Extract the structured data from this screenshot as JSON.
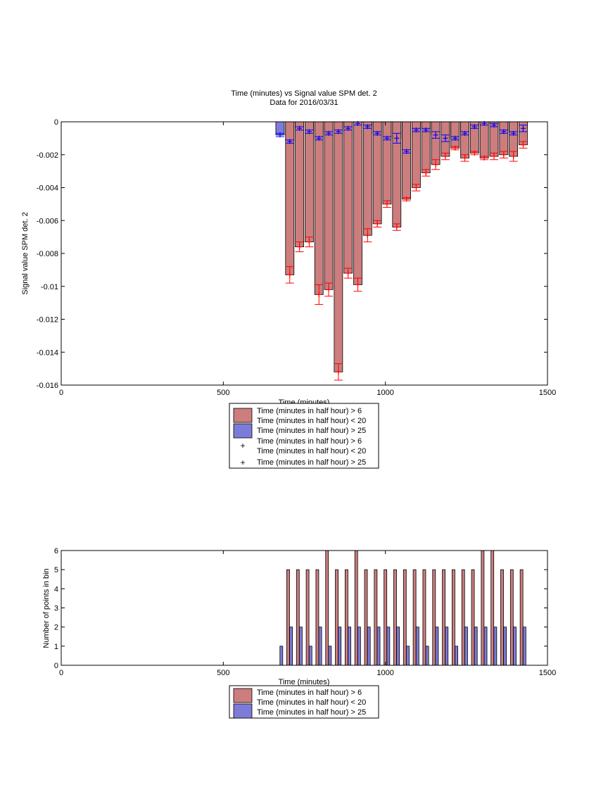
{
  "colors": {
    "bar_mid": "#cc7d7d",
    "bar_late": "#7c7cd8",
    "marker_mid": "#ff0000",
    "marker_late": "#0000ff"
  },
  "chart_data": [
    {
      "type": "bar",
      "title": "Time (minutes) vs Signal value SPM det. 2",
      "subtitle": "Data for 2016/03/31",
      "xlabel": "Time (minutes)",
      "ylabel": "Signal value SPM det. 2",
      "xlim": [
        0,
        1500
      ],
      "ylim": [
        -0.016,
        0
      ],
      "xticks": [
        0,
        500,
        1000,
        1500
      ],
      "xtick_labels": [
        "0",
        "500",
        "1000",
        "1500"
      ],
      "yticks": [
        0,
        -0.002,
        -0.004,
        -0.006,
        -0.008,
        -0.01,
        -0.012,
        -0.014,
        -0.016
      ],
      "ytick_labels": [
        "0",
        "-0.002",
        "-0.004",
        "-0.006",
        "-0.008",
        "-0.01",
        "-0.012",
        "-0.014",
        "-0.016"
      ],
      "legend_position": "below",
      "legend": [
        {
          "kind": "bar",
          "series": 0,
          "lines": [
            "Time (minutes in half hour) > 6",
            "Time (minutes in half hour) < 20"
          ]
        },
        {
          "kind": "bar",
          "series": 1,
          "lines": [
            "Time (minutes in half hour) > 25"
          ]
        },
        {
          "kind": "marker",
          "series": 0,
          "lines": [
            "Time (minutes in half hour) > 6",
            "Time (minutes in half hour) < 20"
          ]
        },
        {
          "kind": "marker",
          "series": 1,
          "lines": [
            "Time (minutes in half hour) > 25"
          ]
        }
      ],
      "series": [
        {
          "x": [
            705,
            735,
            765,
            795,
            825,
            855,
            885,
            915,
            945,
            975,
            1005,
            1035,
            1065,
            1095,
            1125,
            1155,
            1185,
            1215,
            1245,
            1275,
            1305,
            1335,
            1365,
            1395,
            1425
          ],
          "values": [
            -0.0093,
            -0.0076,
            -0.0073,
            -0.0105,
            -0.0102,
            -0.0152,
            -0.0092,
            -0.0099,
            -0.0069,
            -0.0062,
            -0.005,
            -0.0064,
            -0.0047,
            -0.004,
            -0.0031,
            -0.0026,
            -0.0021,
            -0.0016,
            -0.0022,
            -0.0019,
            -0.0022,
            -0.0021,
            -0.002,
            -0.0021,
            -0.0014
          ],
          "errors": [
            0.0005,
            0.0003,
            0.0003,
            0.0006,
            0.0004,
            0.0005,
            0.0003,
            0.0004,
            0.0004,
            0.0002,
            0.0002,
            0.0002,
            0.0001,
            0.0002,
            0.0002,
            0.0003,
            0.0002,
            0.0001,
            0.0002,
            0.0001,
            0.0001,
            0.0002,
            0.0002,
            0.0003,
            0.0002
          ]
        },
        {
          "x": [
            675,
            705,
            735,
            765,
            795,
            825,
            855,
            885,
            915,
            945,
            975,
            1005,
            1035,
            1065,
            1095,
            1125,
            1155,
            1185,
            1215,
            1245,
            1275,
            1305,
            1335,
            1365,
            1395,
            1425
          ],
          "values": [
            -0.0008,
            -0.0012,
            -0.0004,
            -0.0006,
            -0.001,
            -0.0007,
            -0.0006,
            -0.0004,
            -0.0001,
            -0.0003,
            -0.0007,
            -0.001,
            -0.001,
            -0.0018,
            -0.0005,
            -0.0005,
            -0.0008,
            -0.001,
            -0.001,
            -0.0007,
            -0.0003,
            -0.0001,
            -0.0002,
            -0.0006,
            -0.0007,
            -0.0004
          ],
          "errors": [
            0.0001,
            0.0001,
            0.0001,
            0.0001,
            0.0001,
            0.0001,
            0.0001,
            0.0001,
            0.0001,
            0.0001,
            0.0001,
            0.0001,
            0.0003,
            0.0001,
            0.0001,
            0.0001,
            0.0002,
            0.0002,
            0.0001,
            0.0001,
            0.0001,
            0.0001,
            0.0001,
            0.0001,
            0.0001,
            0.0002
          ]
        }
      ]
    },
    {
      "type": "bar",
      "xlabel": "Time (minutes)",
      "ylabel": "Number of points in bin",
      "xlim": [
        0,
        1500
      ],
      "ylim": [
        0,
        6
      ],
      "xticks": [
        0,
        500,
        1000,
        1500
      ],
      "xtick_labels": [
        "0",
        "500",
        "1000",
        "1500"
      ],
      "yticks": [
        0,
        1,
        2,
        3,
        4,
        5,
        6
      ],
      "ytick_labels": [
        "0",
        "1",
        "2",
        "3",
        "4",
        "5",
        "6"
      ],
      "legend_position": "below",
      "legend": [
        {
          "kind": "bar",
          "series": 0,
          "lines": [
            "Time (minutes in half hour) > 6",
            "Time (minutes in half hour) < 20"
          ]
        },
        {
          "kind": "bar",
          "series": 1,
          "lines": [
            "Time (minutes in half hour) > 25"
          ]
        }
      ],
      "series": [
        {
          "x": [
            700,
            730,
            760,
            790,
            820,
            850,
            880,
            910,
            940,
            970,
            1000,
            1030,
            1060,
            1090,
            1120,
            1150,
            1180,
            1210,
            1240,
            1270,
            1300,
            1330,
            1360,
            1390,
            1420
          ],
          "values": [
            5,
            5,
            5,
            5,
            6,
            5,
            5,
            6,
            5,
            5,
            5,
            5,
            5,
            5,
            5,
            5,
            5,
            5,
            5,
            5,
            6,
            6,
            5,
            5,
            5
          ]
        },
        {
          "x": [
            679,
            709,
            739,
            769,
            799,
            829,
            859,
            889,
            919,
            949,
            979,
            1009,
            1039,
            1069,
            1099,
            1129,
            1159,
            1189,
            1219,
            1249,
            1279,
            1309,
            1339,
            1369,
            1399,
            1429
          ],
          "values": [
            1,
            2,
            2,
            1,
            2,
            1,
            2,
            2,
            2,
            2,
            2,
            2,
            2,
            1,
            2,
            1,
            2,
            2,
            1,
            2,
            2,
            2,
            2,
            2,
            2,
            2
          ]
        }
      ]
    }
  ]
}
